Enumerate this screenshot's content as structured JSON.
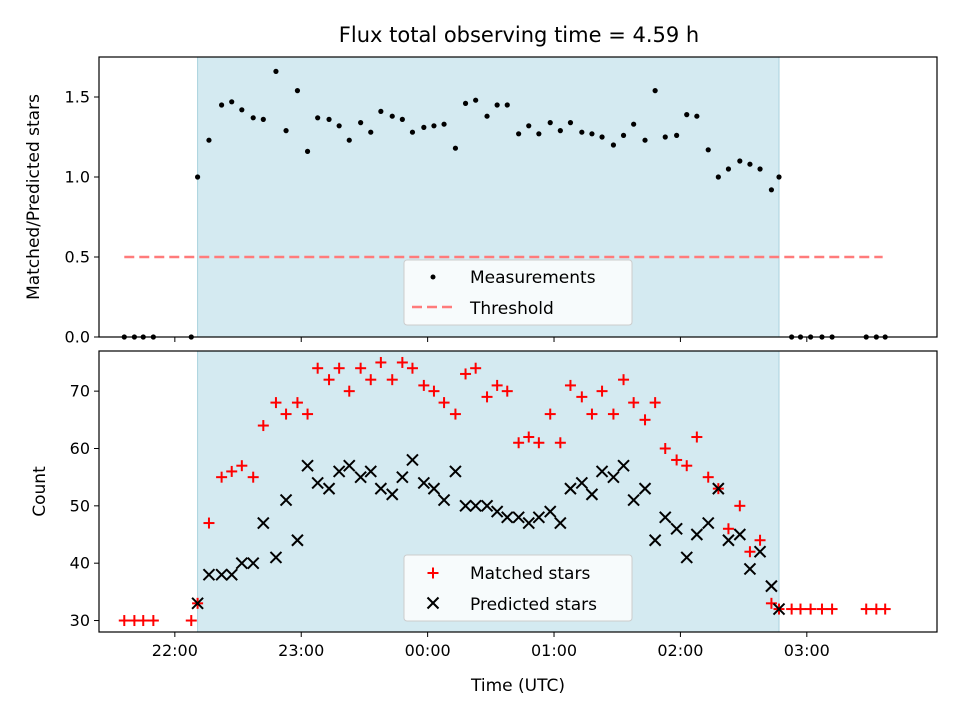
{
  "chart_data": [
    {
      "type": "scatter",
      "title": "Flux total observing time = 4.59 h",
      "xlabel": "",
      "ylabel": "Matched/Predicted stars",
      "ylim": [
        0,
        1.75
      ],
      "yticks": [
        "0.0",
        "0.5",
        "1.0",
        "1.5"
      ],
      "xlim_hours": [
        21.4,
        28.03
      ],
      "observing_window_hours": [
        22.18,
        26.78
      ],
      "window_color": "#d4eaf1",
      "threshold": {
        "name": "Threshold",
        "value": 0.5,
        "x_range_hours": [
          21.6,
          27.6
        ],
        "color": "#ff7b7b"
      },
      "legend": {
        "position": "lower-center",
        "entries": [
          "Measurements",
          "Threshold"
        ]
      },
      "series": [
        {
          "name": "Measurements",
          "color": "#000000",
          "x_hours": [
            21.6,
            21.68,
            21.75,
            21.83,
            22.13,
            22.18,
            22.27,
            22.37,
            22.45,
            22.53,
            22.62,
            22.7,
            22.8,
            22.88,
            22.97,
            23.05,
            23.13,
            23.22,
            23.3,
            23.38,
            23.47,
            23.55,
            23.63,
            23.72,
            23.8,
            23.88,
            23.97,
            24.05,
            24.13,
            24.22,
            24.3,
            24.38,
            24.47,
            24.55,
            24.63,
            24.72,
            24.8,
            24.88,
            24.97,
            25.05,
            25.13,
            25.22,
            25.3,
            25.38,
            25.47,
            25.55,
            25.63,
            25.72,
            25.8,
            25.88,
            25.97,
            26.05,
            26.13,
            26.22,
            26.3,
            26.38,
            26.47,
            26.55,
            26.63,
            26.72,
            26.78,
            26.88,
            26.95,
            27.03,
            27.12,
            27.2,
            27.47,
            27.55,
            27.62
          ],
          "y": [
            0.0,
            0.0,
            0.0,
            0.0,
            0.0,
            1.0,
            1.23,
            1.45,
            1.47,
            1.42,
            1.37,
            1.36,
            1.66,
            1.29,
            1.54,
            1.16,
            1.37,
            1.36,
            1.32,
            1.23,
            1.34,
            1.28,
            1.41,
            1.38,
            1.36,
            1.28,
            1.31,
            1.32,
            1.33,
            1.18,
            1.46,
            1.48,
            1.38,
            1.45,
            1.45,
            1.27,
            1.32,
            1.27,
            1.34,
            1.29,
            1.34,
            1.28,
            1.27,
            1.25,
            1.2,
            1.26,
            1.33,
            1.23,
            1.54,
            1.25,
            1.26,
            1.39,
            1.38,
            1.17,
            1.0,
            1.05,
            1.1,
            1.08,
            1.05,
            0.92,
            1.0,
            0.0,
            0.0,
            0.0,
            0.0,
            0.0,
            0.0,
            0.0,
            0.0
          ]
        }
      ]
    },
    {
      "type": "scatter",
      "title": "",
      "xlabel": "Time (UTC)",
      "ylabel": "Count",
      "ylim": [
        28,
        77
      ],
      "yticks": [
        "30",
        "40",
        "50",
        "60",
        "70"
      ],
      "xlim_hours": [
        21.4,
        28.03
      ],
      "xtick_hours": [
        22,
        23,
        24,
        25,
        26,
        27
      ],
      "xtick_labels": [
        "22:00",
        "23:00",
        "00:00",
        "01:00",
        "02:00",
        "03:00"
      ],
      "observing_window_hours": [
        22.18,
        26.78
      ],
      "window_color": "#d4eaf1",
      "legend": {
        "position": "lower-center",
        "entries": [
          "Matched stars",
          "Predicted stars"
        ]
      },
      "series": [
        {
          "name": "Matched stars",
          "marker": "+",
          "color": "#ff0000",
          "x_hours": [
            21.6,
            21.68,
            21.75,
            21.83,
            22.13,
            22.18,
            22.27,
            22.37,
            22.45,
            22.53,
            22.62,
            22.7,
            22.8,
            22.88,
            22.97,
            23.05,
            23.13,
            23.22,
            23.3,
            23.38,
            23.47,
            23.55,
            23.63,
            23.72,
            23.8,
            23.88,
            23.97,
            24.05,
            24.13,
            24.22,
            24.3,
            24.38,
            24.47,
            24.55,
            24.63,
            24.72,
            24.8,
            24.88,
            24.97,
            25.05,
            25.13,
            25.22,
            25.3,
            25.38,
            25.47,
            25.55,
            25.63,
            25.72,
            25.8,
            25.88,
            25.97,
            26.05,
            26.13,
            26.22,
            26.3,
            26.38,
            26.47,
            26.55,
            26.63,
            26.72,
            26.78,
            26.88,
            26.95,
            27.03,
            27.12,
            27.2,
            27.47,
            27.55,
            27.62
          ],
          "y": [
            30,
            30,
            30,
            30,
            30,
            33,
            47,
            55,
            56,
            57,
            55,
            64,
            68,
            66,
            68,
            66,
            74,
            72,
            74,
            70,
            74,
            72,
            75,
            72,
            75,
            74,
            71,
            70,
            68,
            66,
            73,
            74,
            69,
            71,
            70,
            61,
            62,
            61,
            66,
            61,
            71,
            69,
            66,
            70,
            66,
            72,
            68,
            65,
            68,
            60,
            58,
            57,
            62,
            55,
            53,
            46,
            50,
            42,
            44,
            33,
            32,
            32,
            32,
            32,
            32,
            32,
            32,
            32,
            32
          ]
        },
        {
          "name": "Predicted stars",
          "marker": "x",
          "color": "#000000",
          "x_hours": [
            22.18,
            22.27,
            22.37,
            22.45,
            22.53,
            22.62,
            22.7,
            22.8,
            22.88,
            22.97,
            23.05,
            23.13,
            23.22,
            23.3,
            23.38,
            23.47,
            23.55,
            23.63,
            23.72,
            23.8,
            23.88,
            23.97,
            24.05,
            24.13,
            24.22,
            24.3,
            24.38,
            24.47,
            24.55,
            24.63,
            24.72,
            24.8,
            24.88,
            24.97,
            25.05,
            25.13,
            25.22,
            25.3,
            25.38,
            25.47,
            25.55,
            25.63,
            25.72,
            25.8,
            25.88,
            25.97,
            26.05,
            26.13,
            26.22,
            26.3,
            26.38,
            26.47,
            26.55,
            26.63,
            26.72,
            26.78
          ],
          "y": [
            33,
            38,
            38,
            38,
            40,
            40,
            47,
            41,
            51,
            44,
            57,
            54,
            53,
            56,
            57,
            55,
            56,
            53,
            52,
            55,
            58,
            54,
            53,
            51,
            56,
            50,
            50,
            50,
            49,
            48,
            48,
            47,
            48,
            49,
            47,
            53,
            54,
            52,
            56,
            55,
            57,
            51,
            53,
            44,
            48,
            46,
            41,
            45,
            47,
            53,
            44,
            45,
            39,
            42,
            36,
            32
          ]
        }
      ]
    }
  ]
}
